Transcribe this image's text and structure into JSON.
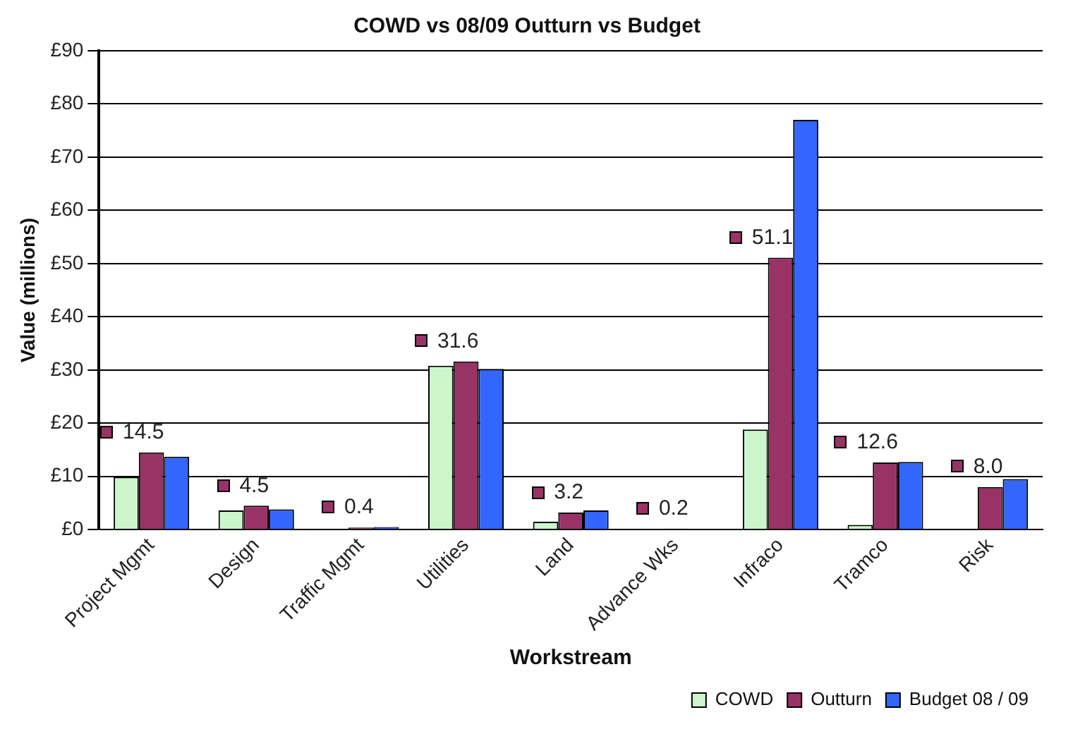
{
  "chart_data": {
    "type": "bar",
    "title": "COWD vs 08/09 Outturn vs Budget",
    "xlabel": "Workstream",
    "ylabel": "Value (millions)",
    "categories": [
      "Project Mgmt",
      "Design",
      "Traffic Mgmt",
      "Utilities",
      "Land",
      "Advance Wks",
      "Infraco",
      "Tramco",
      "Risk"
    ],
    "series": [
      {
        "name": "COWD",
        "color": "#ccf5cc",
        "values": [
          9.9,
          3.6,
          0.1,
          30.8,
          1.5,
          0.1,
          18.8,
          0.9,
          0
        ]
      },
      {
        "name": "Outturn",
        "color": "#993366",
        "values": [
          14.5,
          4.5,
          0.4,
          31.6,
          3.2,
          0.2,
          51.1,
          12.6,
          8.0
        ],
        "value_labels": [
          "14.5",
          "4.5",
          "0.4",
          "31.6",
          "3.2",
          "0.2",
          "51.1",
          "12.6",
          "8.0"
        ]
      },
      {
        "name": "Budget 08 / 09",
        "color": "#3366ff",
        "values": [
          13.7,
          3.8,
          0.5,
          30.2,
          3.6,
          0.1,
          77.0,
          12.7,
          9.5
        ]
      }
    ],
    "ylim": [
      0,
      90
    ],
    "yticks": [
      {
        "value": 0,
        "label": "£0"
      },
      {
        "value": 10,
        "label": "£10"
      },
      {
        "value": 20,
        "label": "£20"
      },
      {
        "value": 30,
        "label": "£30"
      },
      {
        "value": 40,
        "label": "£40"
      },
      {
        "value": 50,
        "label": "£50"
      },
      {
        "value": 60,
        "label": "£60"
      },
      {
        "value": 70,
        "label": "£70"
      },
      {
        "value": 80,
        "label": "£80"
      },
      {
        "value": 90,
        "label": "£90"
      }
    ],
    "grid": "y",
    "legend": "bottom right"
  }
}
